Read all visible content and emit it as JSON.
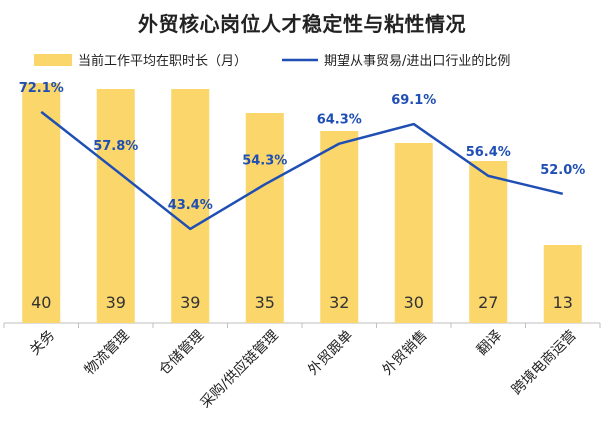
{
  "chart_data": {
    "type": "bar",
    "title": "外贸核心岗位人才稳定性与粘性情况",
    "categories": [
      "关务",
      "物流管理",
      "仓储管理",
      "采购/供应链管理",
      "外贸跟单",
      "外贸销售",
      "翻译",
      "跨境电商运营"
    ],
    "series": [
      {
        "name": "当前工作平均在职时长（月）",
        "type": "bar",
        "color": "#FAD66B",
        "values": [
          40,
          39,
          39,
          35,
          32,
          30,
          27,
          13
        ],
        "labels": [
          "40",
          "39",
          "39",
          "35",
          "32",
          "30",
          "27",
          "13"
        ]
      },
      {
        "name": "期望从事贸易/进出口行业的比例",
        "type": "line",
        "color": "#1F4FB4",
        "values": [
          72.1,
          57.8,
          43.4,
          54.3,
          64.3,
          69.1,
          56.4,
          52.0
        ],
        "labels": [
          "72.1%",
          "57.8%",
          "43.4%",
          "54.3%",
          "64.3%",
          "69.1%",
          "56.4%",
          "52.0%"
        ]
      }
    ],
    "bar_axis_range": [
      0,
      45
    ],
    "line_axis_range": [
      0,
      100
    ],
    "grid": false,
    "legend_position": "top"
  }
}
